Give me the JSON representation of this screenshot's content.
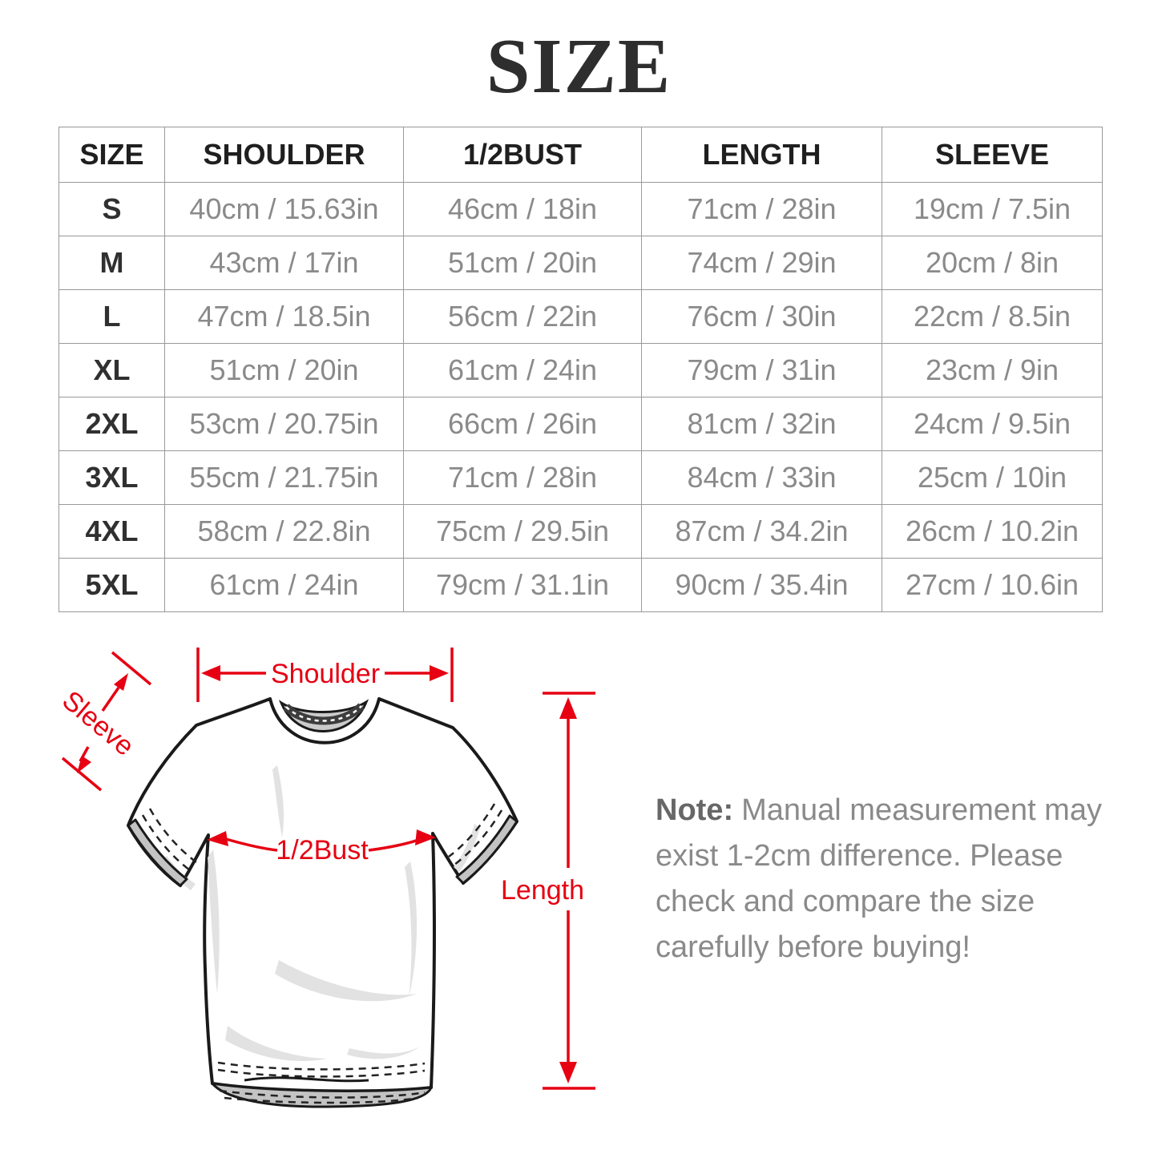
{
  "title": "SIZE",
  "colors": {
    "accent_red": "#e60012",
    "border_gray": "#999999",
    "text_gray": "#8a8a8a",
    "text_dark": "#2e2e2e"
  },
  "table": {
    "headers": [
      "SIZE",
      "SHOULDER",
      "1/2BUST",
      "LENGTH",
      "SLEEVE"
    ],
    "rows": [
      [
        "S",
        "40cm / 15.63in",
        "46cm / 18in",
        "71cm / 28in",
        "19cm / 7.5in"
      ],
      [
        "M",
        "43cm / 17in",
        "51cm / 20in",
        "74cm / 29in",
        "20cm / 8in"
      ],
      [
        "L",
        "47cm / 18.5in",
        "56cm / 22in",
        "76cm / 30in",
        "22cm / 8.5in"
      ],
      [
        "XL",
        "51cm / 20in",
        "61cm / 24in",
        "79cm / 31in",
        "23cm / 9in"
      ],
      [
        "2XL",
        "53cm / 20.75in",
        "66cm / 26in",
        "81cm / 32in",
        "24cm / 9.5in"
      ],
      [
        "3XL",
        "55cm / 21.75in",
        "71cm / 28in",
        "84cm / 33in",
        "25cm / 10in"
      ],
      [
        "4XL",
        "58cm / 22.8in",
        "75cm / 29.5in",
        "87cm / 34.2in",
        "26cm / 10.2in"
      ],
      [
        "5XL",
        "61cm / 24in",
        "79cm / 31.1in",
        "90cm / 35.4in",
        "27cm / 10.6in"
      ]
    ]
  },
  "diagram": {
    "shoulder_label": "Shoulder",
    "sleeve_label": "Sleeve",
    "bust_label": "1/2Bust",
    "length_label": "Length"
  },
  "note": {
    "label": "Note:",
    "lines": [
      "Manual measurement may",
      "exist 1-2cm difference. Please",
      "check and compare the size",
      "carefully before buying!"
    ]
  }
}
